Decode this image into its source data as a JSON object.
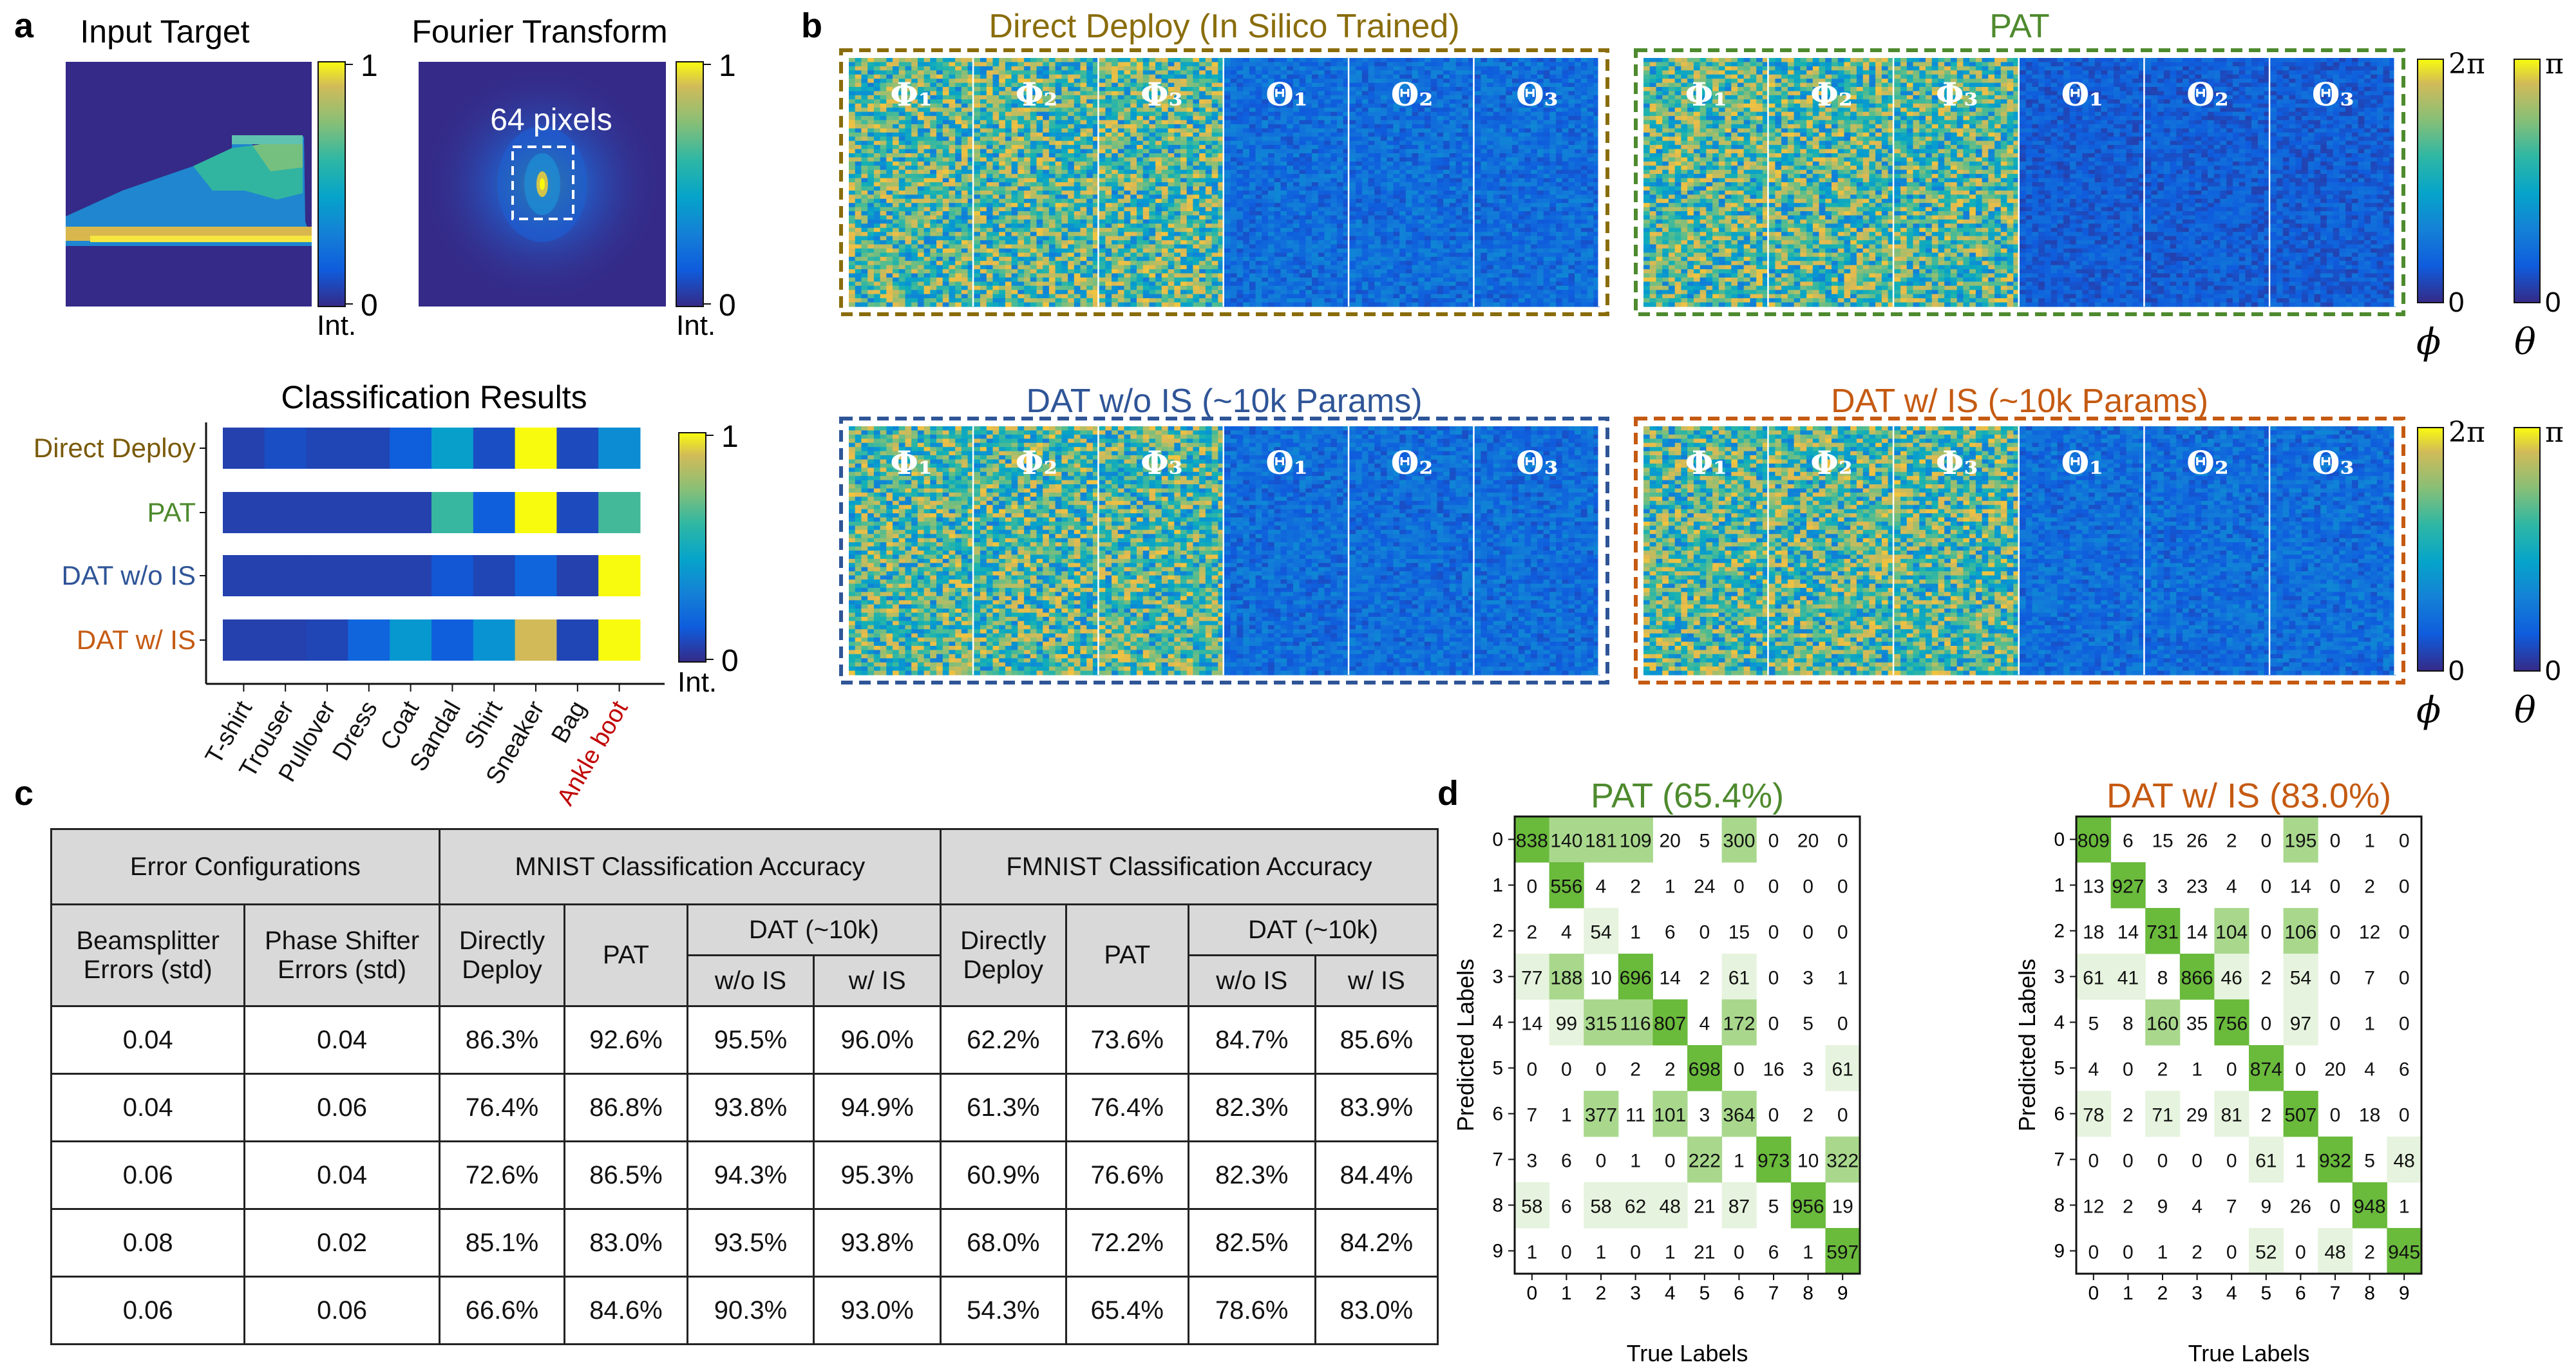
{
  "panels": {
    "a": "a",
    "b": "b",
    "c": "c",
    "d": "d"
  },
  "panel_a": {
    "input_title": "Input Target",
    "fourier_title": "Fourier Transform",
    "fourier_annotation": "64 pixels",
    "colorbar_max": "1",
    "colorbar_min": "0",
    "colorbar_label": "Int.",
    "classification": {
      "title": "Classification Results",
      "rows": [
        {
          "label": "Direct Deploy",
          "color": "#7a5a0a",
          "values": [
            0.05,
            0.08,
            0.06,
            0.06,
            0.12,
            0.35,
            0.08,
            1.0,
            0.07,
            0.28
          ]
        },
        {
          "label": "PAT",
          "color": "#4e8a2e",
          "values": [
            0.05,
            0.05,
            0.05,
            0.05,
            0.05,
            0.5,
            0.12,
            1.0,
            0.07,
            0.52
          ]
        },
        {
          "label": "DAT w/o IS",
          "color": "#2f5597",
          "values": [
            0.05,
            0.05,
            0.05,
            0.05,
            0.05,
            0.1,
            0.06,
            0.14,
            0.05,
            1.0
          ]
        },
        {
          "label": "DAT w/ IS",
          "color": "#c55a11",
          "values": [
            0.05,
            0.05,
            0.06,
            0.14,
            0.32,
            0.12,
            0.3,
            0.75,
            0.06,
            1.0
          ]
        }
      ],
      "classes": [
        "T-shirt",
        "Trouser",
        "Pullover",
        "Dress",
        "Coat",
        "Sandal",
        "Shirt",
        "Sneaker",
        "Bag",
        "Ankle boot"
      ],
      "highlight_class_color": "#c00000"
    }
  },
  "panel_b": {
    "groups": [
      {
        "title": "Direct Deploy (In Silico Trained)",
        "color": "#8a6d0b",
        "phase_style": "noisy",
        "theta_style": "smooth"
      },
      {
        "title": "PAT",
        "color": "#4e8a2e",
        "phase_style": "noisy",
        "theta_style": "dark"
      },
      {
        "title": "DAT w/o IS (~10k Params)",
        "color": "#2f5597",
        "phase_style": "noisy",
        "theta_style": "smooth"
      },
      {
        "title": "DAT w/ IS (~10k Params)",
        "color": "#c55a11",
        "phase_style": "noisy",
        "theta_style": "smooth"
      }
    ],
    "tile_labels": [
      "Φ₁",
      "Φ₂",
      "Φ₃",
      "Θ₁",
      "Θ₂",
      "Θ₃"
    ],
    "phi_colorbar": {
      "max": "2π",
      "min": "0",
      "symbol": "ϕ"
    },
    "theta_colorbar": {
      "max": "π",
      "min": "0",
      "symbol": "θ"
    }
  },
  "panel_c": {
    "header": {
      "error_configurations": "Error Configurations",
      "mnist": "MNIST Classification Accuracy",
      "fmnist": "FMNIST Classification Accuracy",
      "beamsplitter": "Beamsplitter Errors (std)",
      "phase_shifter": "Phase Shifter Errors (std)",
      "directly_deploy": "Directly Deploy",
      "pat": "PAT",
      "dat": "DAT (~10k)",
      "wo_is": "w/o IS",
      "w_is": "w/ IS"
    },
    "rows": [
      [
        "0.04",
        "0.04",
        "86.3%",
        "92.6%",
        "95.5%",
        "96.0%",
        "62.2%",
        "73.6%",
        "84.7%",
        "85.6%"
      ],
      [
        "0.04",
        "0.06",
        "76.4%",
        "86.8%",
        "93.8%",
        "94.9%",
        "61.3%",
        "76.4%",
        "82.3%",
        "83.9%"
      ],
      [
        "0.06",
        "0.04",
        "72.6%",
        "86.5%",
        "94.3%",
        "95.3%",
        "60.9%",
        "76.6%",
        "82.3%",
        "84.4%"
      ],
      [
        "0.08",
        "0.02",
        "85.1%",
        "83.0%",
        "93.5%",
        "93.8%",
        "68.0%",
        "72.2%",
        "82.5%",
        "84.2%"
      ],
      [
        "0.06",
        "0.06",
        "66.6%",
        "84.6%",
        "90.3%",
        "93.0%",
        "54.3%",
        "65.4%",
        "78.6%",
        "83.0%"
      ]
    ]
  },
  "panel_d": {
    "ylabel": "Predicted Labels",
    "xlabel": "True Labels",
    "ticks": [
      "0",
      "1",
      "2",
      "3",
      "4",
      "5",
      "6",
      "7",
      "8",
      "9"
    ],
    "matrices": [
      {
        "title": "PAT (65.4%)",
        "color": "#4e8a2e",
        "cells": [
          [
            838,
            140,
            181,
            109,
            20,
            5,
            300,
            0,
            20,
            0
          ],
          [
            0,
            556,
            4,
            2,
            1,
            24,
            0,
            0,
            0,
            0
          ],
          [
            2,
            4,
            54,
            1,
            6,
            0,
            15,
            0,
            0,
            0
          ],
          [
            77,
            188,
            10,
            696,
            14,
            2,
            61,
            0,
            3,
            1
          ],
          [
            14,
            99,
            315,
            116,
            807,
            4,
            172,
            0,
            5,
            0
          ],
          [
            0,
            0,
            0,
            2,
            2,
            698,
            0,
            16,
            3,
            61
          ],
          [
            7,
            1,
            377,
            11,
            101,
            3,
            364,
            0,
            2,
            0
          ],
          [
            3,
            6,
            0,
            1,
            0,
            222,
            1,
            973,
            10,
            322
          ],
          [
            58,
            6,
            58,
            62,
            48,
            21,
            87,
            5,
            956,
            19
          ],
          [
            1,
            0,
            1,
            0,
            1,
            21,
            0,
            6,
            1,
            597
          ]
        ]
      },
      {
        "title": "DAT w/ IS (83.0%)",
        "color": "#c55a11",
        "cells": [
          [
            809,
            6,
            15,
            26,
            2,
            0,
            195,
            0,
            1,
            0
          ],
          [
            13,
            927,
            3,
            23,
            4,
            0,
            14,
            0,
            2,
            0
          ],
          [
            18,
            14,
            731,
            14,
            104,
            0,
            106,
            0,
            12,
            0
          ],
          [
            61,
            41,
            8,
            866,
            46,
            2,
            54,
            0,
            7,
            0
          ],
          [
            5,
            8,
            160,
            35,
            756,
            0,
            97,
            0,
            1,
            0
          ],
          [
            4,
            0,
            2,
            1,
            0,
            874,
            0,
            20,
            4,
            6
          ],
          [
            78,
            2,
            71,
            29,
            81,
            2,
            507,
            0,
            18,
            0
          ],
          [
            0,
            0,
            0,
            0,
            0,
            61,
            1,
            932,
            5,
            48
          ],
          [
            12,
            2,
            9,
            4,
            7,
            9,
            26,
            0,
            948,
            1
          ],
          [
            0,
            0,
            1,
            2,
            0,
            52,
            0,
            48,
            2,
            945
          ]
        ]
      }
    ]
  }
}
